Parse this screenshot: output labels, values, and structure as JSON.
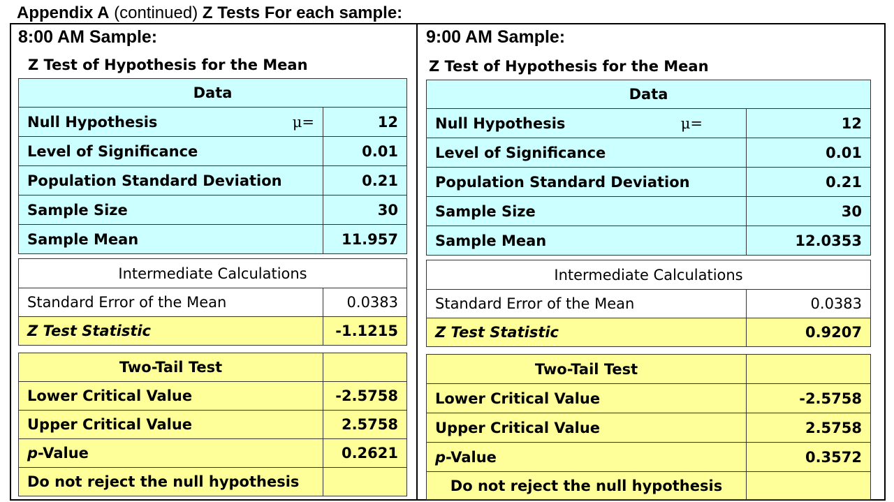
{
  "heading": {
    "part1": "Appendix A",
    "part2": " (continued) ",
    "part3": "Z Tests For each sample:"
  },
  "panels": [
    {
      "sample_title": "8:00 AM Sample:",
      "test_title": "Z Test of Hypothesis for the Mean",
      "data_header": "Data",
      "rows": [
        {
          "label": "Null Hypothesis",
          "symbol": "μ=",
          "value": "12"
        },
        {
          "label": "Level of Significance",
          "value": "0.01"
        },
        {
          "label": "Population Standard Deviation",
          "value": "0.21"
        },
        {
          "label": "Sample Size",
          "value": "30"
        },
        {
          "label": "Sample Mean",
          "value": "11.957"
        }
      ],
      "intermediate_header": "Intermediate Calculations",
      "std_error_label": "Standard Error of the Mean",
      "std_error_value": "0.0383",
      "z_stat_label": "Z Test Statistic",
      "z_stat_value": "-1.1215",
      "two_tail_header": "Two-Tail Test",
      "lower_cv_label": "Lower Critical Value",
      "lower_cv_value": "-2.5758",
      "upper_cv_label": "Upper Critical Value",
      "upper_cv_value": "2.5758",
      "pvalue_label_italic": "p",
      "pvalue_label_rest": "-Value",
      "pvalue_value": "0.2621",
      "conclusion": "Do not reject the null hypothesis"
    },
    {
      "sample_title": "9:00 AM Sample:",
      "test_title": "Z Test of Hypothesis for the Mean",
      "data_header": "Data",
      "rows": [
        {
          "label": "Null Hypothesis",
          "symbol": "μ=",
          "value": "12"
        },
        {
          "label": "Level of Significance",
          "value": "0.01"
        },
        {
          "label": "Population Standard Deviation",
          "value": "0.21"
        },
        {
          "label": "Sample Size",
          "value": "30"
        },
        {
          "label": "Sample Mean",
          "value": "12.0353"
        }
      ],
      "intermediate_header": "Intermediate Calculations",
      "std_error_label": "Standard Error of the Mean",
      "std_error_value": "0.0383",
      "z_stat_label": "Z Test Statistic",
      "z_stat_value": "0.9207",
      "two_tail_header": "Two-Tail Test",
      "lower_cv_label": "Lower Critical Value",
      "lower_cv_value": "-2.5758",
      "upper_cv_label": "Upper Critical Value",
      "upper_cv_value": "2.5758",
      "pvalue_label_italic": "p",
      "pvalue_label_rest": "-Value",
      "pvalue_value": "0.3572",
      "conclusion": "Do not reject the null hypothesis"
    }
  ]
}
